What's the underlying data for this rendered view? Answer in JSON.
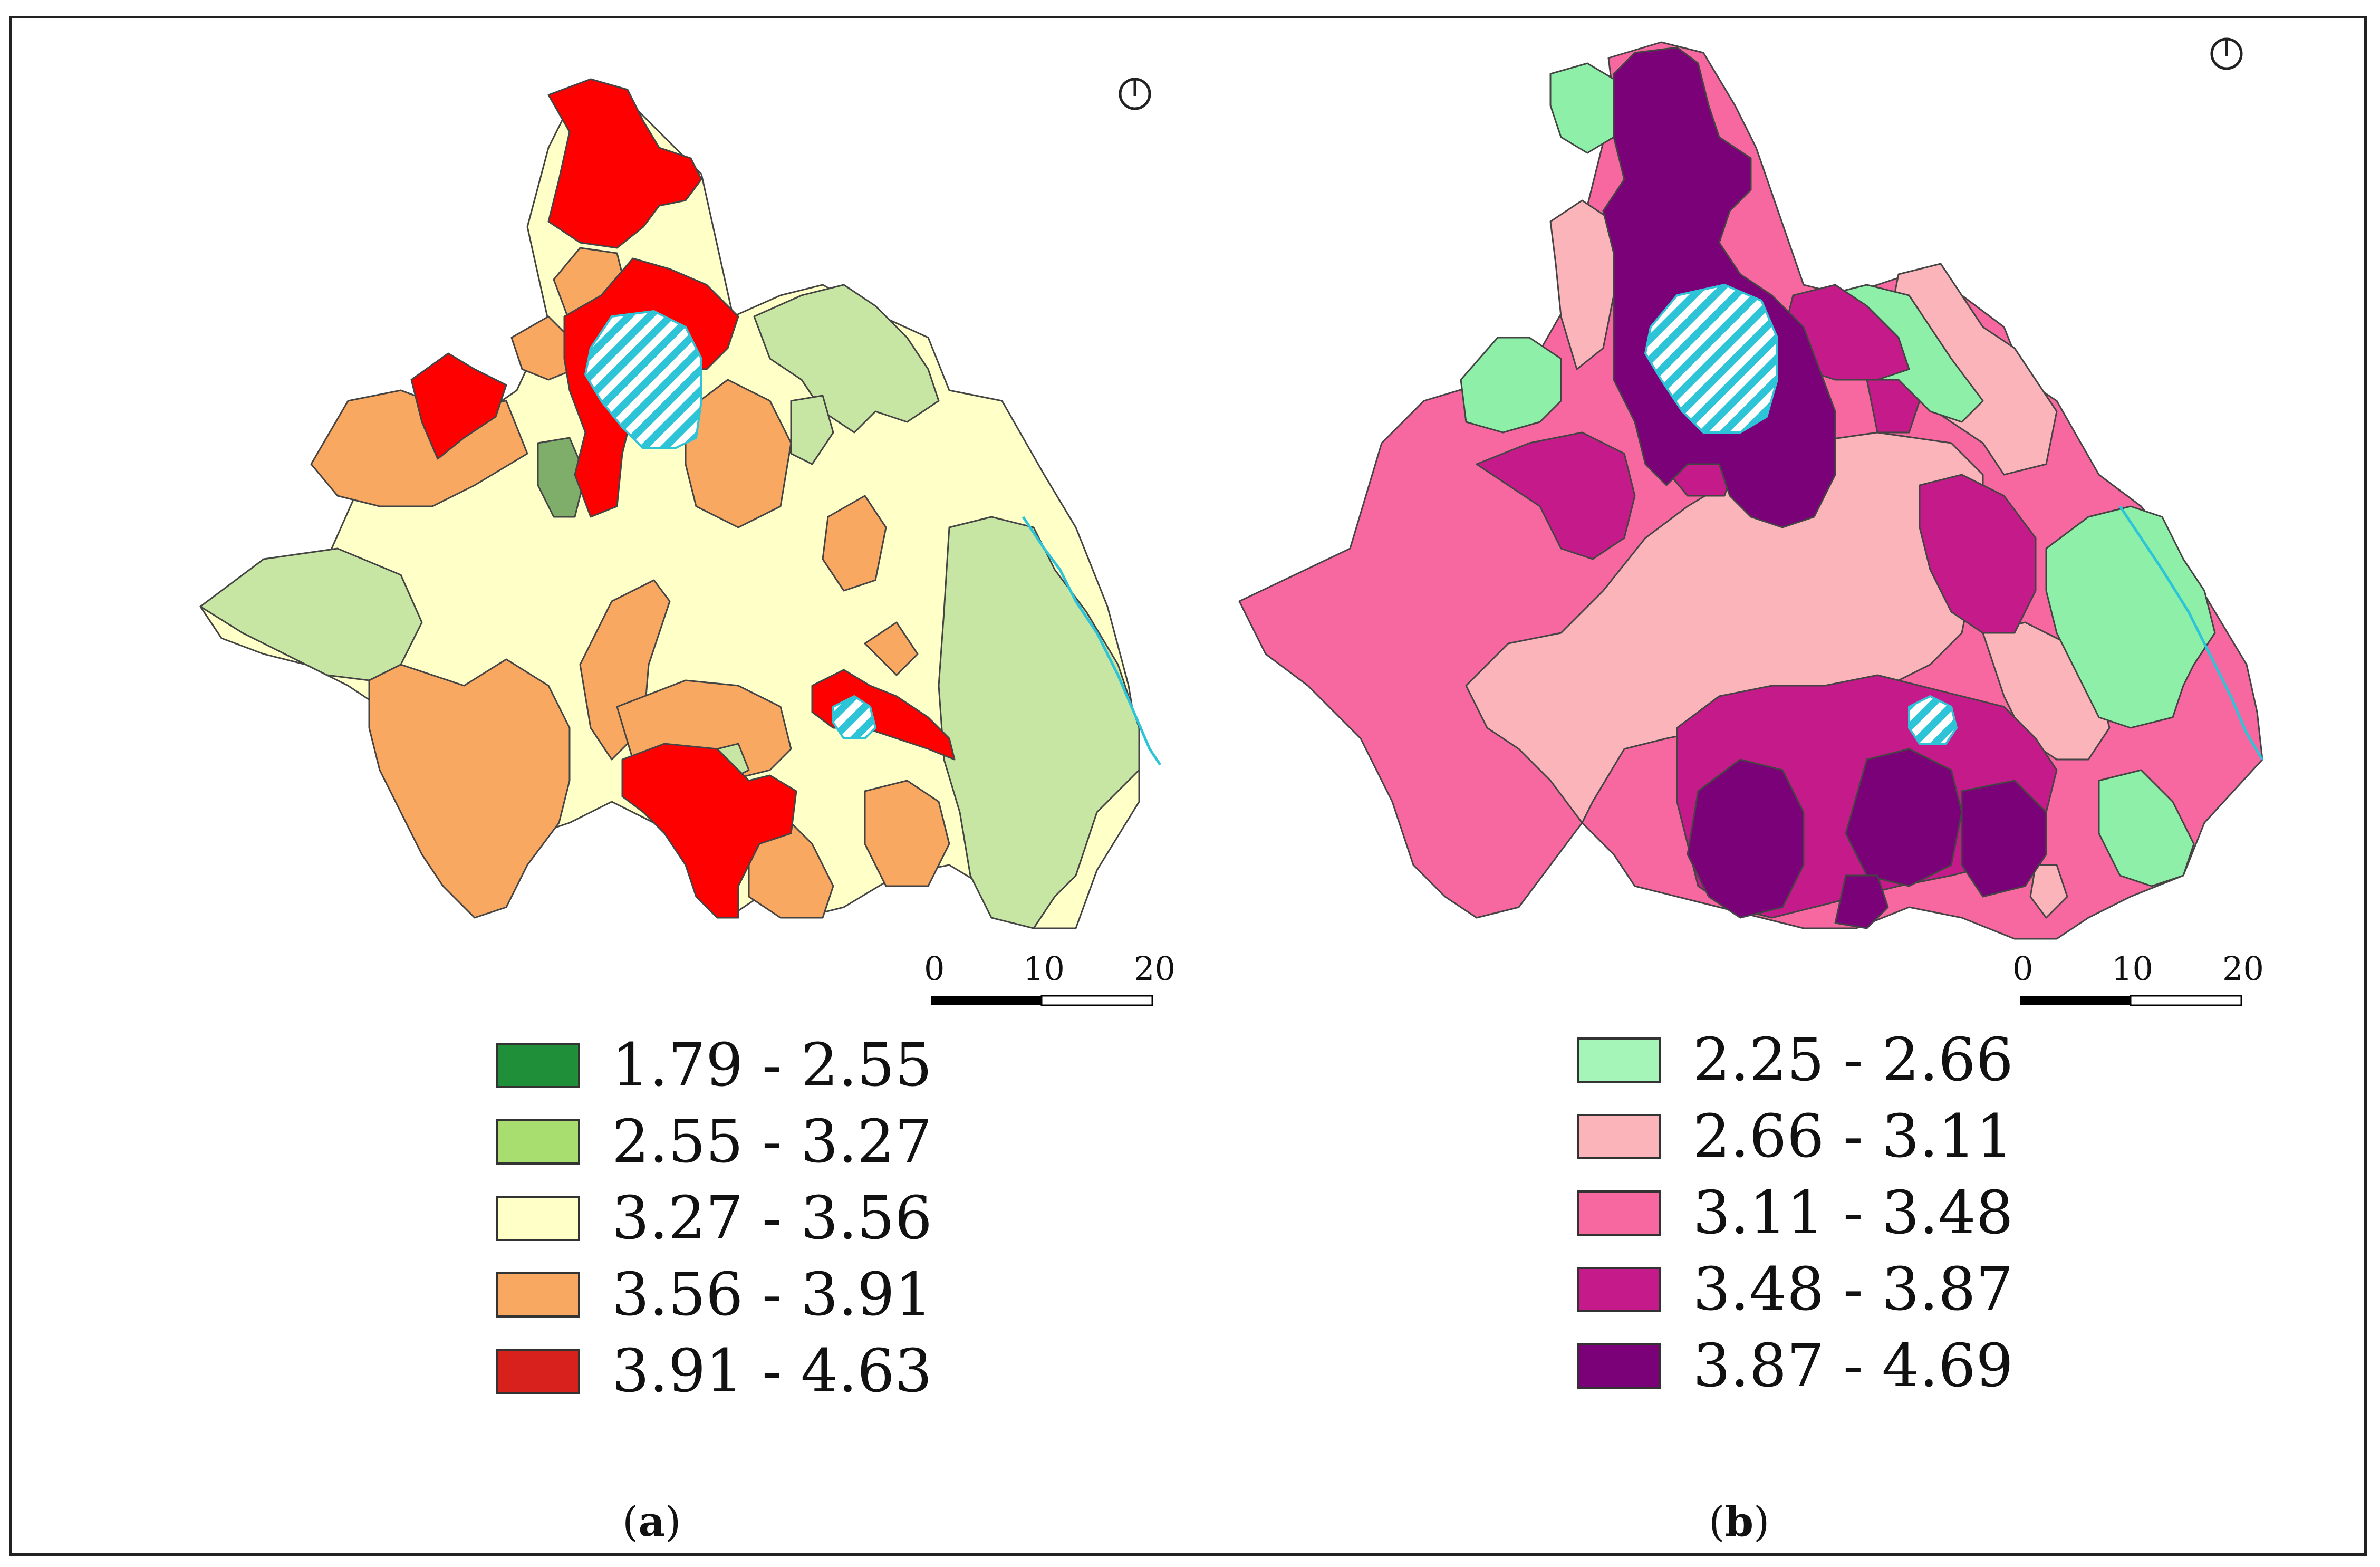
{
  "panels": [
    {
      "id": "a",
      "caption_letter": "a",
      "scale": {
        "ticks": [
          "0",
          "10",
          "20"
        ]
      },
      "legend": [
        {
          "label": "1.79 - 2.55",
          "color": "#1f8f3a"
        },
        {
          "label": "2.55 - 3.27",
          "color": "#a8dd70"
        },
        {
          "label": "3.27 - 3.56",
          "color": "#ffffc8"
        },
        {
          "label": "3.56 - 3.91",
          "color": "#f9a862"
        },
        {
          "label": "3.91 - 4.63",
          "color": "#d8211d"
        }
      ],
      "map_colors": {
        "dark_green": "#7fae6a",
        "green": "#c7e6a3",
        "yellow": "#ffffc8",
        "orange": "#f9a862",
        "red": "#ff0000",
        "lake_stripe": "#2ec4d8"
      }
    },
    {
      "id": "b",
      "caption_letter": "b",
      "scale": {
        "ticks": [
          "0",
          "10",
          "20"
        ]
      },
      "legend": [
        {
          "label": "2.25 - 2.66",
          "color": "#a5f5b8"
        },
        {
          "label": "2.66 - 3.11",
          "color": "#fbb4b9"
        },
        {
          "label": "3.11 - 3.48",
          "color": "#f768a1"
        },
        {
          "label": "3.48 - 3.87",
          "color": "#c51b8a"
        },
        {
          "label": "3.87 - 4.69",
          "color": "#7a0177"
        }
      ],
      "map_colors": {
        "mint": "#8ef0a8",
        "light_pink": "#fbb4b9",
        "pink": "#f768a1",
        "magenta": "#c51b8a",
        "purple": "#7a0177",
        "lake_stripe": "#2ec4d8"
      }
    }
  ]
}
